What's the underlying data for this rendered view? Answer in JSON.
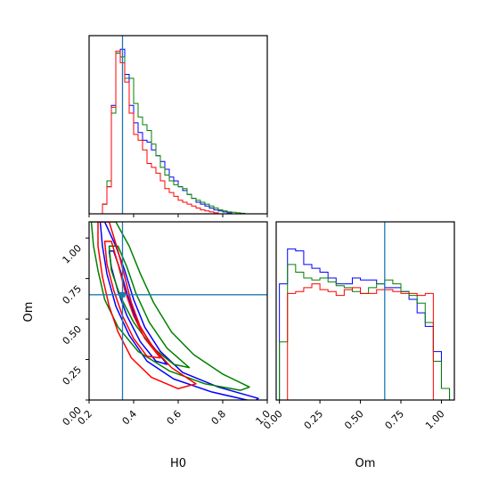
{
  "chart_data": [
    {
      "type": "histogram",
      "panel": "top-left",
      "parameter": "H0",
      "xlim": [
        0.2,
        1.0
      ],
      "marker": 0.35,
      "bins": [
        0.2,
        0.22,
        0.24,
        0.26,
        0.28,
        0.3,
        0.32,
        0.34,
        0.36,
        0.38,
        0.4,
        0.42,
        0.44,
        0.46,
        0.48,
        0.5,
        0.52,
        0.54,
        0.56,
        0.58,
        0.6,
        0.62,
        0.64,
        0.66,
        0.68,
        0.7,
        0.72,
        0.74,
        0.76,
        0.78,
        0.8,
        0.82,
        0.84,
        0.86,
        0.88,
        0.9,
        0.92,
        0.94,
        0.96,
        0.98,
        1.0
      ],
      "series": [
        {
          "color": "#0000ff",
          "values": [
            0,
            0,
            0,
            0.05,
            0.14,
            0.56,
            0.83,
            0.85,
            0.72,
            0.56,
            0.47,
            0.42,
            0.38,
            0.37,
            0.33,
            0.3,
            0.27,
            0.23,
            0.19,
            0.17,
            0.14,
            0.12,
            0.1,
            0.08,
            0.06,
            0.05,
            0.04,
            0.03,
            0.02,
            0.015,
            0.01,
            0.005,
            0,
            0,
            0,
            0,
            0,
            0,
            0,
            0
          ]
        },
        {
          "color": "#008000",
          "values": [
            0,
            0,
            0,
            0.05,
            0.17,
            0.52,
            0.83,
            0.81,
            0.7,
            0.7,
            0.57,
            0.5,
            0.46,
            0.43,
            0.36,
            0.3,
            0.24,
            0.2,
            0.17,
            0.15,
            0.14,
            0.13,
            0.1,
            0.08,
            0.07,
            0.06,
            0.05,
            0.04,
            0.03,
            0.02,
            0.015,
            0.01,
            0.008,
            0.005,
            0.003,
            0,
            0,
            0,
            0,
            0
          ]
        },
        {
          "color": "#ff0000",
          "values": [
            0,
            0,
            0,
            0.05,
            0.14,
            0.55,
            0.84,
            0.78,
            0.68,
            0.52,
            0.41,
            0.38,
            0.33,
            0.26,
            0.24,
            0.21,
            0.17,
            0.13,
            0.11,
            0.09,
            0.07,
            0.06,
            0.05,
            0.04,
            0.03,
            0.02,
            0.015,
            0.01,
            0.005,
            0,
            0,
            0,
            0,
            0,
            0,
            0,
            0,
            0,
            0,
            0
          ]
        }
      ]
    },
    {
      "type": "contour",
      "panel": "bottom-left",
      "xlabel": "H0",
      "ylabel": "Om",
      "xlim": [
        0.2,
        1.0
      ],
      "ylim": [
        0.0,
        1.1
      ],
      "xticks": [
        "0.2",
        "0.4",
        "0.6",
        "0.8",
        "1.0"
      ],
      "yticks": [
        "0.00",
        "0.25",
        "0.50",
        "0.75",
        "1.00"
      ],
      "marker": {
        "x": 0.35,
        "y": 0.65
      },
      "series": [
        {
          "color": "#0000ff",
          "contours": [
            [
              [
                0.27,
                1.1
              ],
              [
                0.32,
                0.95
              ],
              [
                0.36,
                0.8
              ],
              [
                0.4,
                0.62
              ],
              [
                0.45,
                0.45
              ],
              [
                0.52,
                0.3
              ],
              [
                0.62,
                0.17
              ],
              [
                0.78,
                0.08
              ],
              [
                0.96,
                0.01
              ],
              [
                0.94,
                -0.01
              ],
              [
                0.75,
                0.05
              ],
              [
                0.58,
                0.13
              ],
              [
                0.46,
                0.24
              ],
              [
                0.38,
                0.4
              ],
              [
                0.32,
                0.58
              ],
              [
                0.28,
                0.78
              ],
              [
                0.26,
                0.95
              ],
              [
                0.25,
                1.1
              ]
            ],
            [
              [
                0.31,
                0.92
              ],
              [
                0.34,
                0.8
              ],
              [
                0.37,
                0.66
              ],
              [
                0.41,
                0.5
              ],
              [
                0.47,
                0.36
              ],
              [
                0.55,
                0.22
              ],
              [
                0.5,
                0.24
              ],
              [
                0.43,
                0.36
              ],
              [
                0.37,
                0.52
              ],
              [
                0.33,
                0.67
              ],
              [
                0.3,
                0.82
              ],
              [
                0.29,
                0.92
              ]
            ]
          ]
        },
        {
          "color": "#008000",
          "contours": [
            [
              [
                0.32,
                1.1
              ],
              [
                0.38,
                0.95
              ],
              [
                0.43,
                0.78
              ],
              [
                0.49,
                0.6
              ],
              [
                0.57,
                0.42
              ],
              [
                0.67,
                0.28
              ],
              [
                0.8,
                0.16
              ],
              [
                0.92,
                0.08
              ],
              [
                0.88,
                0.06
              ],
              [
                0.72,
                0.1
              ],
              [
                0.56,
                0.18
              ],
              [
                0.42,
                0.3
              ],
              [
                0.33,
                0.45
              ],
              [
                0.27,
                0.62
              ],
              [
                0.24,
                0.8
              ],
              [
                0.22,
                0.95
              ],
              [
                0.21,
                1.1
              ]
            ],
            [
              [
                0.33,
                0.95
              ],
              [
                0.37,
                0.82
              ],
              [
                0.41,
                0.66
              ],
              [
                0.47,
                0.48
              ],
              [
                0.55,
                0.32
              ],
              [
                0.65,
                0.2
              ],
              [
                0.58,
                0.22
              ],
              [
                0.48,
                0.33
              ],
              [
                0.4,
                0.48
              ],
              [
                0.34,
                0.64
              ],
              [
                0.3,
                0.8
              ],
              [
                0.29,
                0.95
              ]
            ]
          ]
        },
        {
          "color": "#ff0000",
          "contours": [
            [
              [
                0.29,
                1.1
              ],
              [
                0.33,
                0.92
              ],
              [
                0.36,
                0.76
              ],
              [
                0.39,
                0.6
              ],
              [
                0.43,
                0.45
              ],
              [
                0.49,
                0.32
              ],
              [
                0.57,
                0.2
              ],
              [
                0.68,
                0.1
              ],
              [
                0.6,
                0.07
              ],
              [
                0.48,
                0.14
              ],
              [
                0.39,
                0.26
              ],
              [
                0.33,
                0.42
              ],
              [
                0.29,
                0.58
              ],
              [
                0.26,
                0.76
              ],
              [
                0.24,
                0.95
              ],
              [
                0.24,
                1.1
              ]
            ],
            [
              [
                0.3,
                0.98
              ],
              [
                0.33,
                0.84
              ],
              [
                0.36,
                0.68
              ],
              [
                0.4,
                0.52
              ],
              [
                0.45,
                0.38
              ],
              [
                0.52,
                0.26
              ],
              [
                0.46,
                0.27
              ],
              [
                0.4,
                0.38
              ],
              [
                0.35,
                0.52
              ],
              [
                0.31,
                0.68
              ],
              [
                0.28,
                0.84
              ],
              [
                0.27,
                0.98
              ]
            ]
          ]
        }
      ]
    },
    {
      "type": "histogram",
      "panel": "bottom-right",
      "xlabel": "Om",
      "parameter": "Om",
      "xlim": [
        -0.02,
        1.08
      ],
      "xticks": [
        "0.00",
        "0.25",
        "0.50",
        "0.75",
        "1.00"
      ],
      "marker": 0.65,
      "bins": [
        0.0,
        0.05,
        0.1,
        0.15,
        0.2,
        0.25,
        0.3,
        0.35,
        0.4,
        0.45,
        0.5,
        0.55,
        0.6,
        0.65,
        0.7,
        0.75,
        0.8,
        0.85,
        0.9,
        0.95,
        1.0,
        1.05
      ],
      "series": [
        {
          "color": "#0000ff",
          "values": [
            0.6,
            0.78,
            0.77,
            0.7,
            0.68,
            0.66,
            0.63,
            0.6,
            0.6,
            0.63,
            0.62,
            0.62,
            0.6,
            0.58,
            0.58,
            0.56,
            0.52,
            0.45,
            0.38,
            0.25,
            0.06
          ]
        },
        {
          "color": "#008000",
          "values": [
            0.3,
            0.7,
            0.66,
            0.63,
            0.62,
            0.63,
            0.61,
            0.59,
            0.58,
            0.56,
            0.55,
            0.58,
            0.6,
            0.62,
            0.6,
            0.56,
            0.54,
            0.5,
            0.4,
            0.2,
            0.06
          ]
        },
        {
          "color": "#ff0000",
          "values": [
            0.0,
            0.55,
            0.56,
            0.58,
            0.6,
            0.57,
            0.56,
            0.54,
            0.57,
            0.58,
            0.55,
            0.55,
            0.57,
            0.57,
            0.56,
            0.55,
            0.55,
            0.54,
            0.55,
            0.0,
            0.0
          ]
        }
      ]
    }
  ]
}
